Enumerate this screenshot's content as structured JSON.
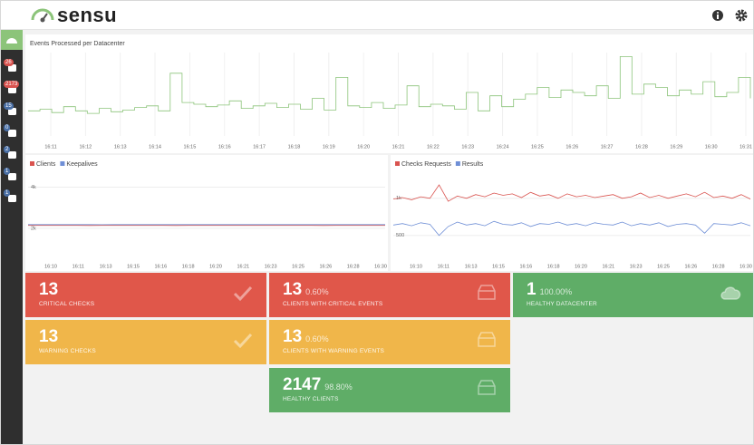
{
  "header": {
    "logo": "sensu"
  },
  "sidebar": {
    "badges": [
      26,
      2173,
      15,
      0,
      2,
      1,
      1
    ]
  },
  "chart_data": [
    {
      "type": "line",
      "title": "Events Processed per Datacenter",
      "xticks": [
        "16:11",
        "16:12",
        "16:13",
        "16:14",
        "16:15",
        "16:16",
        "16:17",
        "16:18",
        "16:19",
        "16:20",
        "16:21",
        "16:22",
        "16:23",
        "16:24",
        "16:25",
        "16:26",
        "16:27",
        "16:28",
        "16:29",
        "16:30",
        "16:31"
      ],
      "series": [
        {
          "color": "#8cc47a",
          "values": [
            30,
            32,
            28,
            35,
            30,
            27,
            33,
            29,
            31,
            34,
            36,
            30,
            75,
            40,
            38,
            35,
            37,
            42,
            33,
            36,
            39,
            34,
            38,
            32,
            45,
            31,
            70,
            36,
            34,
            40,
            33,
            37,
            60,
            35,
            38,
            36,
            32,
            52,
            30,
            48,
            35,
            44,
            50,
            58,
            46,
            55,
            52,
            48,
            60,
            45,
            95,
            50,
            62,
            58,
            48,
            55,
            50,
            65,
            47,
            52,
            70,
            45
          ]
        }
      ]
    },
    {
      "type": "line",
      "xticks": [
        "16:10",
        "16:11",
        "16:13",
        "16:15",
        "16:16",
        "16:18",
        "16:20",
        "16:21",
        "16:23",
        "16:25",
        "16:26",
        "16:28",
        "16:30"
      ],
      "ylim": [
        500,
        4900
      ],
      "yticks": [
        {
          "value": 4000,
          "label": "4k"
        },
        {
          "value": 2000,
          "label": "2k"
        }
      ],
      "series": [
        {
          "name": "Clients",
          "color": "#d9534f",
          "values": [
            2140,
            2142,
            2140,
            2141,
            2140,
            2139,
            2141,
            2142,
            2140,
            2140,
            2141,
            2140,
            2139,
            2140,
            2142,
            2141,
            2140,
            2140,
            2141,
            2140,
            2142,
            2140,
            2141,
            2140,
            2139,
            2140,
            2141,
            2140,
            2142,
            2140
          ]
        },
        {
          "name": "Keepalives",
          "color": "#6f8fd6",
          "values": [
            2180,
            2182,
            2179,
            2181,
            2183,
            2180,
            2178,
            2181,
            2182,
            2180,
            2179,
            2183,
            2181,
            2180,
            2182,
            2179,
            2181,
            2180,
            2183,
            2181,
            2180,
            2179,
            2182,
            2181,
            2180,
            2183,
            2180,
            2181,
            2179,
            2182
          ]
        }
      ]
    },
    {
      "type": "line",
      "xticks": [
        "16:10",
        "16:11",
        "16:13",
        "16:15",
        "16:16",
        "16:18",
        "16:20",
        "16:21",
        "16:23",
        "16:25",
        "16:26",
        "16:28",
        "16:30"
      ],
      "ylim": [
        180,
        1400
      ],
      "yticks": [
        {
          "value": 1000,
          "label": "1k"
        },
        {
          "value": 500,
          "label": "500"
        }
      ],
      "series": [
        {
          "name": "Checks Requests",
          "color": "#d9534f",
          "values": [
            990,
            1010,
            980,
            1020,
            1000,
            1180,
            960,
            1030,
            1000,
            1050,
            1020,
            1070,
            1040,
            1060,
            1010,
            1080,
            1030,
            1050,
            1000,
            1060,
            1020,
            1040,
            1010,
            1030,
            1050,
            1000,
            1020,
            1070,
            1010,
            1040,
            1000,
            1030,
            1060,
            1020,
            1080,
            1010,
            1030,
            1000,
            1050,
            990
          ]
        },
        {
          "name": "Results",
          "color": "#6f8fd6",
          "values": [
            640,
            660,
            630,
            670,
            650,
            500,
            620,
            680,
            640,
            660,
            630,
            690,
            650,
            640,
            670,
            620,
            660,
            650,
            680,
            640,
            660,
            630,
            670,
            650,
            640,
            680,
            630,
            660,
            640,
            670,
            620,
            650,
            660,
            640,
            530,
            660,
            650,
            640,
            670,
            630
          ]
        }
      ]
    }
  ],
  "tiles": [
    {
      "count": 13,
      "label": "CRITICAL CHECKS"
    },
    {
      "count": 13,
      "percent": "0.60%",
      "label": "CLIENTS WITH CRITICAL EVENTS"
    },
    {
      "count": 1,
      "percent": "100.00%",
      "label": "HEALTHY DATACENTER"
    },
    {
      "count": 13,
      "label": "WARNING CHECKS"
    },
    {
      "count": 13,
      "percent": "0.60%",
      "label": "CLIENTS WITH WARNING EVENTS"
    },
    {
      "count": 2147,
      "percent": "98.80%",
      "label": "HEALTHY CLIENTS"
    }
  ]
}
